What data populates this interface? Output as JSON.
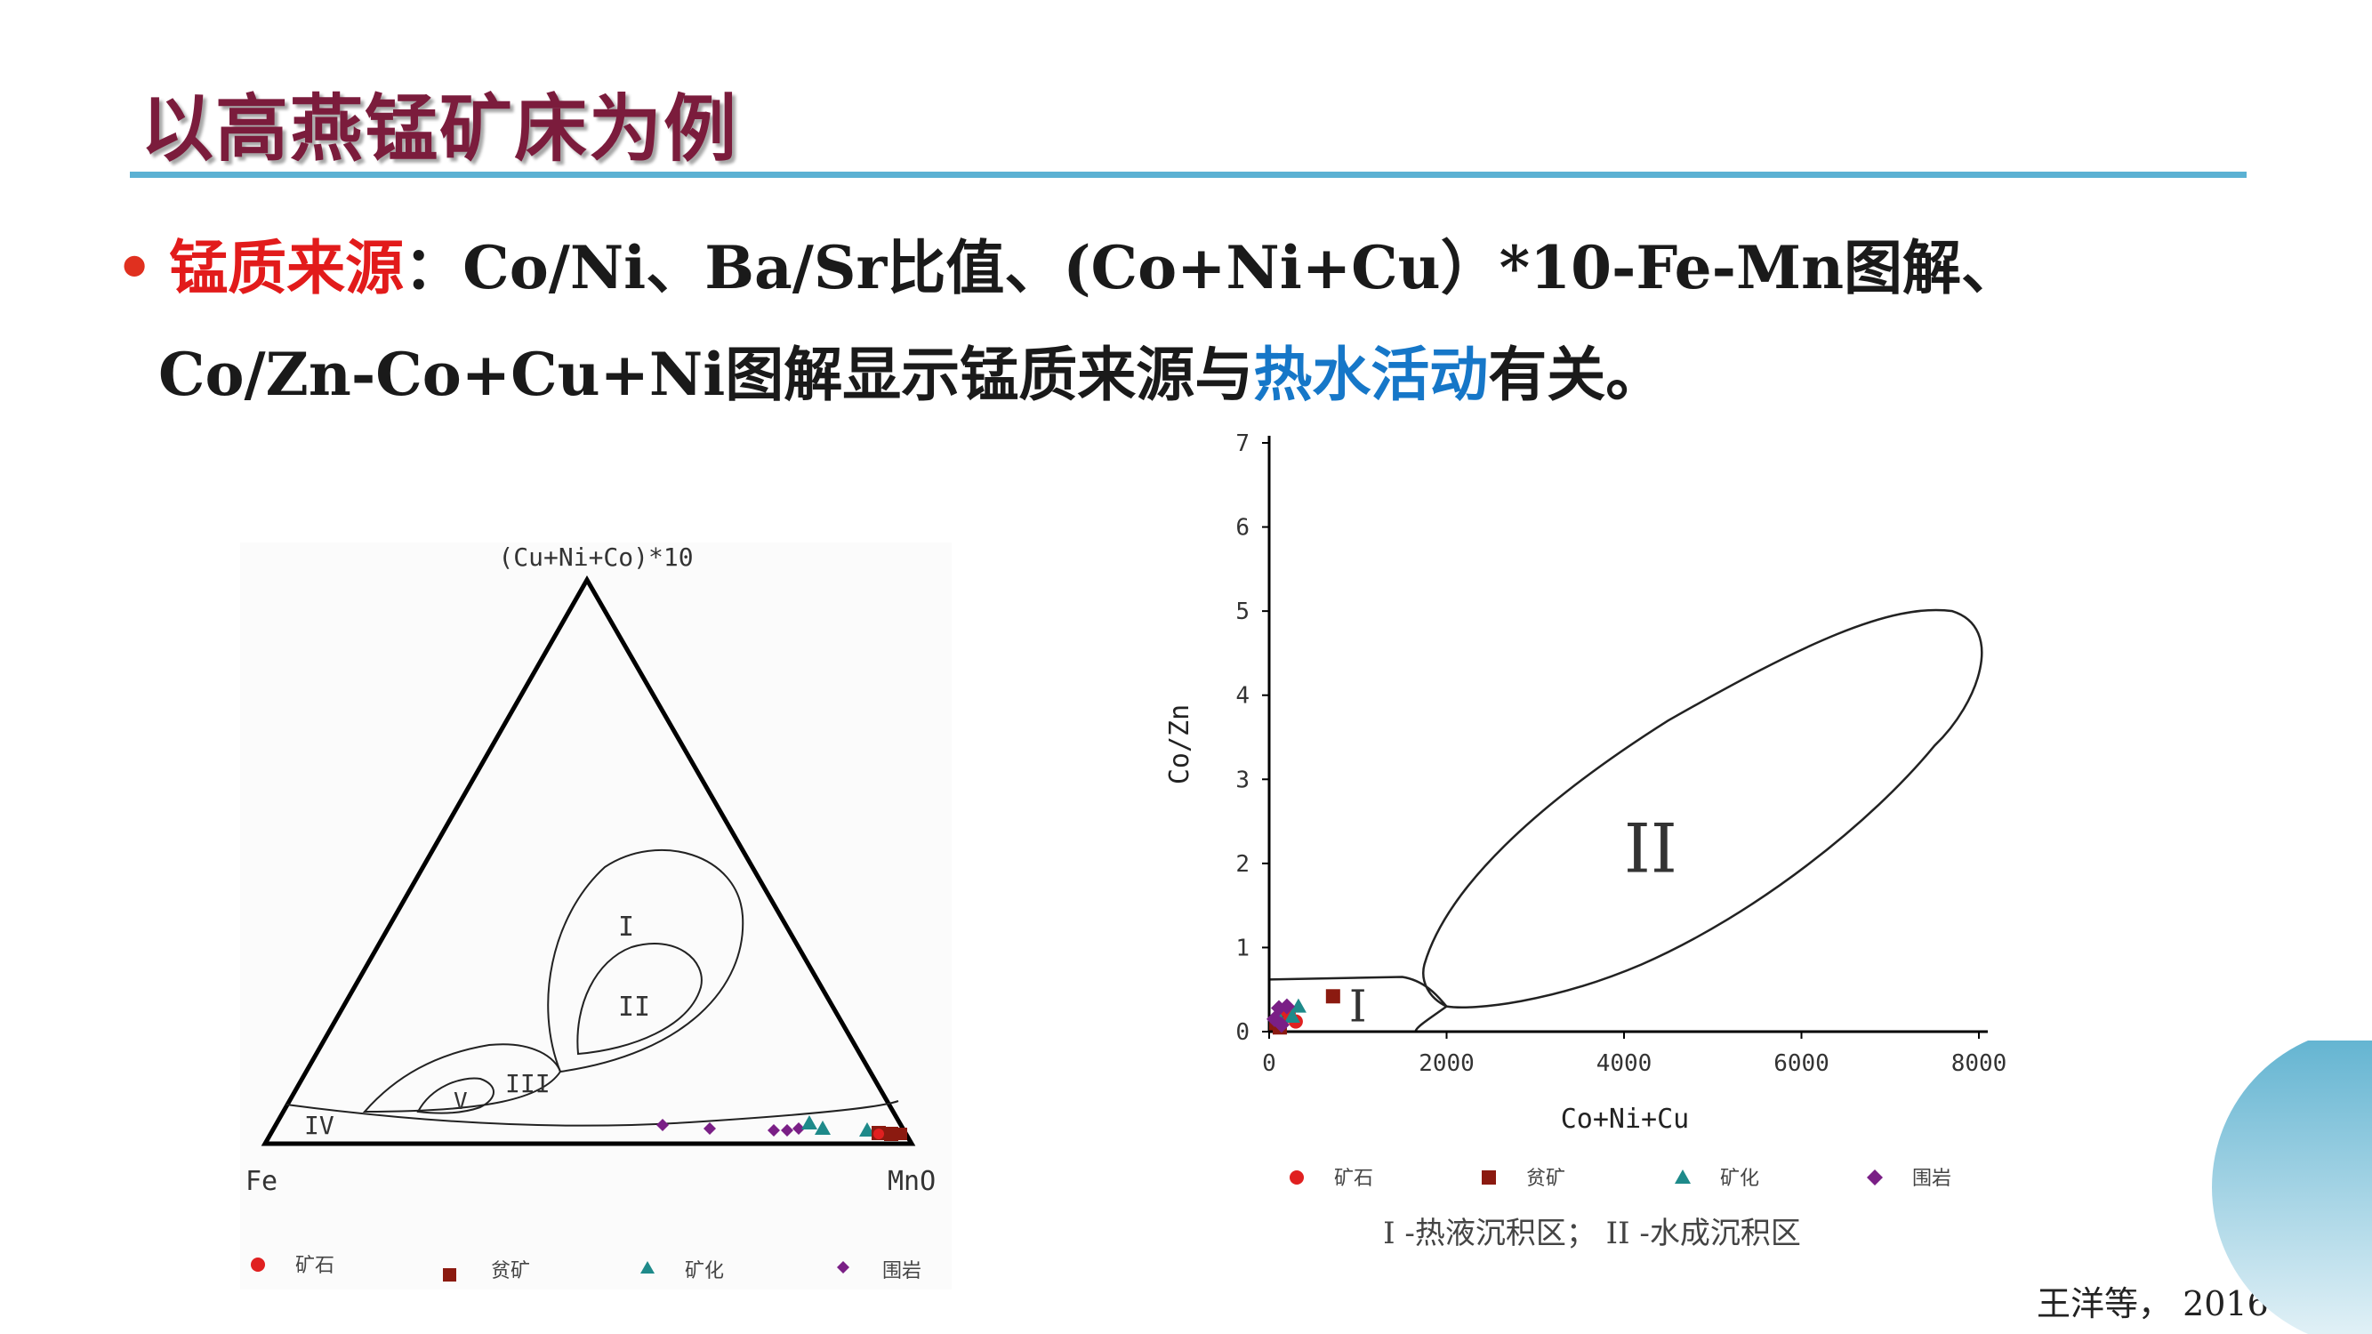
{
  "slide": {
    "title": "以高燕锰矿床为例",
    "bullet_dot": "•",
    "line1_red": "锰质来源",
    "line1_rest": "：Co/Ni、Ba/Sr比值、(Co+Ni+Cu）*10-Fe-Mn图解、",
    "line2_a": "Co/Zn-Co+Cu+Ni图解显示锰质来源与",
    "line2_blue": "热水活动",
    "line2_b": "有关。",
    "citation": "王洋等，  2016",
    "accent_color": "#5bb1d3",
    "title_color": "#7b1c3c"
  },
  "ternary": {
    "top_label": "(Cu+Ni+Co)*10",
    "left_label": "Fe",
    "right_label": "MnO",
    "region_labels": [
      "I",
      "II",
      "III",
      "IV",
      "V"
    ],
    "legend": [
      {
        "symbol": "circle",
        "color": "#e02020",
        "label": "矿石"
      },
      {
        "symbol": "square",
        "color": "#8b1a10",
        "label": "贫矿"
      },
      {
        "symbol": "triangle",
        "color": "#1e8a8a",
        "label": "矿化"
      },
      {
        "symbol": "diamond",
        "color": "#7a1f86",
        "label": "围岩"
      }
    ]
  },
  "chart_data": {
    "type": "scatter",
    "xlabel": "Co+Ni+Cu",
    "ylabel": "Co/Zn",
    "xlim": [
      0,
      8000
    ],
    "ylim": [
      0,
      7
    ],
    "xticks": [
      "0",
      "2000",
      "4000",
      "6000",
      "8000"
    ],
    "yticks": [
      "0",
      "1",
      "2",
      "3",
      "4",
      "5",
      "6",
      "7"
    ],
    "grid": false,
    "region_labels": [
      "I",
      "II"
    ],
    "caption": "I -热液沉积区； II -水成沉积区",
    "series": [
      {
        "name": "矿石",
        "color": "#e02020",
        "symbol": "circle",
        "points": [
          [
            150,
            0.15
          ],
          [
            220,
            0.22
          ],
          [
            300,
            0.12
          ],
          [
            180,
            0.25
          ]
        ]
      },
      {
        "name": "贫矿",
        "color": "#8b1a10",
        "symbol": "square",
        "points": [
          [
            720,
            0.42
          ],
          [
            80,
            0.1
          ],
          [
            120,
            0.05
          ]
        ]
      },
      {
        "name": "矿化",
        "color": "#1e8a8a",
        "symbol": "triangle",
        "points": [
          [
            330,
            0.3
          ],
          [
            260,
            0.18
          ],
          [
            90,
            0.2
          ]
        ]
      },
      {
        "name": "围岩",
        "color": "#7a1f86",
        "symbol": "diamond",
        "points": [
          [
            60,
            0.15
          ],
          [
            110,
            0.28
          ],
          [
            200,
            0.3
          ],
          [
            140,
            0.08
          ]
        ]
      }
    ]
  }
}
